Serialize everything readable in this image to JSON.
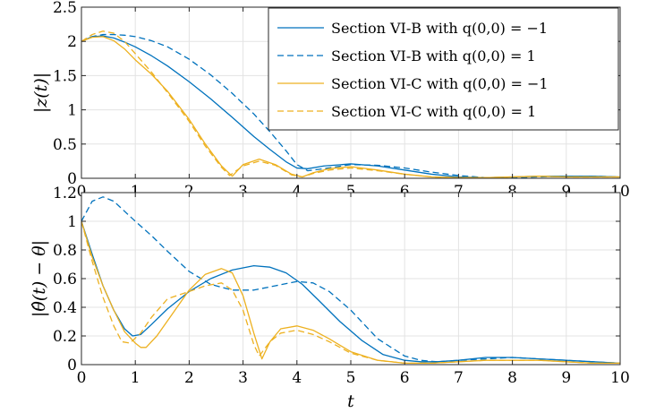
{
  "chart_data": [
    {
      "type": "line",
      "ylabel": "|z(t)|",
      "xlim": [
        0,
        10
      ],
      "ylim": [
        0,
        2.5
      ],
      "xticks": [
        "0",
        "1",
        "2",
        "3",
        "4",
        "5",
        "6",
        "7",
        "8",
        "9",
        "10"
      ],
      "yticks": [
        "0",
        "0.5",
        "1",
        "1.5",
        "2",
        "2.5"
      ],
      "grid": true,
      "legend_position": "top-right",
      "series": [
        {
          "name": "Section VI-B with q(0,0) = −1",
          "color": "#0072BD",
          "dash": "solid",
          "x": [
            0,
            0.2,
            0.4,
            0.6,
            0.8,
            1.0,
            1.3,
            1.6,
            2.0,
            2.4,
            2.8,
            3.2,
            3.5,
            3.8,
            4.0,
            4.2,
            4.5,
            5.0,
            5.5,
            6.0,
            6.5,
            7.0,
            7.5,
            8.0,
            8.5,
            9.0,
            9.5,
            10
          ],
          "y": [
            2.0,
            2.07,
            2.08,
            2.05,
            1.99,
            1.92,
            1.79,
            1.64,
            1.41,
            1.16,
            0.89,
            0.61,
            0.42,
            0.24,
            0.15,
            0.14,
            0.18,
            0.21,
            0.18,
            0.12,
            0.06,
            0.02,
            0.01,
            0.02,
            0.03,
            0.03,
            0.03,
            0.02
          ]
        },
        {
          "name": "Section VI-B with q(0,0) = 1",
          "color": "#0072BD",
          "dash": "dashed",
          "x": [
            0,
            0.2,
            0.4,
            0.6,
            0.8,
            1.0,
            1.3,
            1.6,
            2.0,
            2.4,
            2.8,
            3.2,
            3.5,
            3.8,
            4.0,
            4.2,
            4.5,
            5.0,
            5.5,
            6.0,
            6.5,
            7.0,
            7.5,
            8.0,
            8.5,
            9.0,
            9.5,
            10
          ],
          "y": [
            2.0,
            2.07,
            2.1,
            2.1,
            2.09,
            2.07,
            2.01,
            1.92,
            1.74,
            1.51,
            1.24,
            0.94,
            0.68,
            0.4,
            0.2,
            0.11,
            0.14,
            0.2,
            0.19,
            0.15,
            0.09,
            0.04,
            0.01,
            0.01,
            0.02,
            0.03,
            0.03,
            0.02
          ]
        },
        {
          "name": "Section VI-C with q(0,0) = −1",
          "color": "#EDB120",
          "dash": "solid",
          "x": [
            0,
            0.2,
            0.4,
            0.6,
            0.8,
            1.0,
            1.3,
            1.6,
            2.0,
            2.3,
            2.6,
            2.8,
            3.0,
            3.3,
            3.6,
            3.9,
            4.1,
            4.3,
            4.6,
            5.0,
            5.5,
            6.0,
            6.5,
            7.0,
            7.5,
            8.0,
            8.5,
            9.0,
            9.5,
            10
          ],
          "y": [
            2.0,
            2.06,
            2.07,
            2.01,
            1.89,
            1.73,
            1.52,
            1.27,
            0.86,
            0.5,
            0.18,
            0.03,
            0.2,
            0.28,
            0.2,
            0.06,
            0.02,
            0.08,
            0.14,
            0.17,
            0.12,
            0.06,
            0.02,
            0.01,
            0.01,
            0.02,
            0.03,
            0.02,
            0.02,
            0.02
          ]
        },
        {
          "name": "Section VI-C with q(0,0) = 1",
          "color": "#EDB120",
          "dash": "dashed",
          "x": [
            0,
            0.2,
            0.4,
            0.6,
            0.8,
            1.0,
            1.3,
            1.6,
            2.0,
            2.3,
            2.6,
            2.75,
            3.0,
            3.3,
            3.6,
            3.9,
            4.1,
            4.3,
            4.6,
            5.0,
            5.5,
            6.0,
            6.5,
            7.0,
            7.5,
            8.0,
            8.5,
            9.0,
            9.5,
            10
          ],
          "y": [
            2.0,
            2.1,
            2.15,
            2.12,
            2.0,
            1.82,
            1.55,
            1.25,
            0.83,
            0.47,
            0.16,
            0.04,
            0.18,
            0.25,
            0.19,
            0.05,
            0.02,
            0.07,
            0.12,
            0.15,
            0.11,
            0.06,
            0.02,
            0.01,
            0.01,
            0.02,
            0.03,
            0.02,
            0.02,
            0.02
          ]
        }
      ]
    },
    {
      "type": "line",
      "xlabel": "t",
      "ylabel": "|θ̂(t) − θ|",
      "xlim": [
        0,
        10
      ],
      "ylim": [
        0,
        1.2
      ],
      "xticks": [
        "0",
        "1",
        "2",
        "3",
        "4",
        "5",
        "6",
        "7",
        "8",
        "9",
        "10"
      ],
      "yticks": [
        "0",
        "0.2",
        "0.4",
        "0.6",
        "0.8",
        "1",
        "1.2"
      ],
      "grid": true,
      "series": [
        {
          "name": "Section VI-B with q(0,0) = −1",
          "color": "#0072BD",
          "dash": "solid",
          "x": [
            0,
            0.2,
            0.4,
            0.6,
            0.8,
            0.95,
            1.1,
            1.3,
            1.6,
            2.0,
            2.4,
            2.8,
            3.2,
            3.5,
            3.8,
            4.1,
            4.4,
            4.8,
            5.2,
            5.6,
            6.0,
            6.3,
            6.6,
            7.0,
            7.5,
            8.0,
            8.5,
            9.0,
            9.5,
            10
          ],
          "y": [
            1.0,
            0.77,
            0.55,
            0.38,
            0.25,
            0.2,
            0.21,
            0.28,
            0.39,
            0.51,
            0.6,
            0.66,
            0.69,
            0.68,
            0.64,
            0.56,
            0.45,
            0.3,
            0.17,
            0.07,
            0.03,
            0.02,
            0.02,
            0.03,
            0.05,
            0.05,
            0.04,
            0.03,
            0.02,
            0.01
          ]
        },
        {
          "name": "Section VI-B with q(0,0) = 1",
          "color": "#0072BD",
          "dash": "dashed",
          "x": [
            0,
            0.2,
            0.4,
            0.6,
            0.8,
            1.0,
            1.3,
            1.6,
            2.0,
            2.4,
            2.8,
            3.2,
            3.6,
            4.0,
            4.3,
            4.6,
            5.0,
            5.5,
            6.0,
            6.3,
            6.6,
            7.0,
            7.5,
            8.0,
            8.5,
            9.0,
            9.5,
            10
          ],
          "y": [
            1.0,
            1.14,
            1.17,
            1.14,
            1.07,
            1.0,
            0.9,
            0.79,
            0.65,
            0.56,
            0.52,
            0.52,
            0.55,
            0.58,
            0.57,
            0.51,
            0.38,
            0.18,
            0.06,
            0.03,
            0.02,
            0.03,
            0.04,
            0.05,
            0.04,
            0.03,
            0.02,
            0.01
          ]
        },
        {
          "name": "Section VI-C with q(0,0) = −1",
          "color": "#EDB120",
          "dash": "solid",
          "x": [
            0,
            0.2,
            0.4,
            0.6,
            0.8,
            1.0,
            1.1,
            1.2,
            1.4,
            1.7,
            2.0,
            2.3,
            2.6,
            2.8,
            3.0,
            3.2,
            3.35,
            3.5,
            3.7,
            4.0,
            4.3,
            4.6,
            5.0,
            5.5,
            6.0,
            6.5,
            7.0,
            7.5,
            8.0,
            8.5,
            9.0,
            9.5,
            10
          ],
          "y": [
            1.0,
            0.75,
            0.55,
            0.38,
            0.23,
            0.15,
            0.12,
            0.12,
            0.2,
            0.36,
            0.52,
            0.63,
            0.67,
            0.64,
            0.48,
            0.22,
            0.04,
            0.16,
            0.25,
            0.27,
            0.24,
            0.18,
            0.09,
            0.03,
            0.01,
            0.01,
            0.02,
            0.03,
            0.03,
            0.03,
            0.02,
            0.01,
            0.01
          ]
        },
        {
          "name": "Section VI-C with q(0,0) = 1",
          "color": "#EDB120",
          "dash": "dashed",
          "x": [
            0,
            0.2,
            0.4,
            0.6,
            0.75,
            0.9,
            1.1,
            1.3,
            1.6,
            2.0,
            2.3,
            2.6,
            2.8,
            3.0,
            3.2,
            3.3,
            3.5,
            3.7,
            4.0,
            4.3,
            4.6,
            5.0,
            5.5,
            6.0,
            6.5,
            7.0,
            7.5,
            8.0,
            8.5,
            9.0,
            9.5,
            10
          ],
          "y": [
            1.0,
            0.72,
            0.47,
            0.27,
            0.16,
            0.15,
            0.22,
            0.33,
            0.46,
            0.51,
            0.55,
            0.57,
            0.52,
            0.38,
            0.14,
            0.06,
            0.16,
            0.22,
            0.24,
            0.21,
            0.16,
            0.08,
            0.03,
            0.01,
            0.01,
            0.02,
            0.03,
            0.03,
            0.03,
            0.02,
            0.01,
            0.01
          ]
        }
      ]
    }
  ]
}
